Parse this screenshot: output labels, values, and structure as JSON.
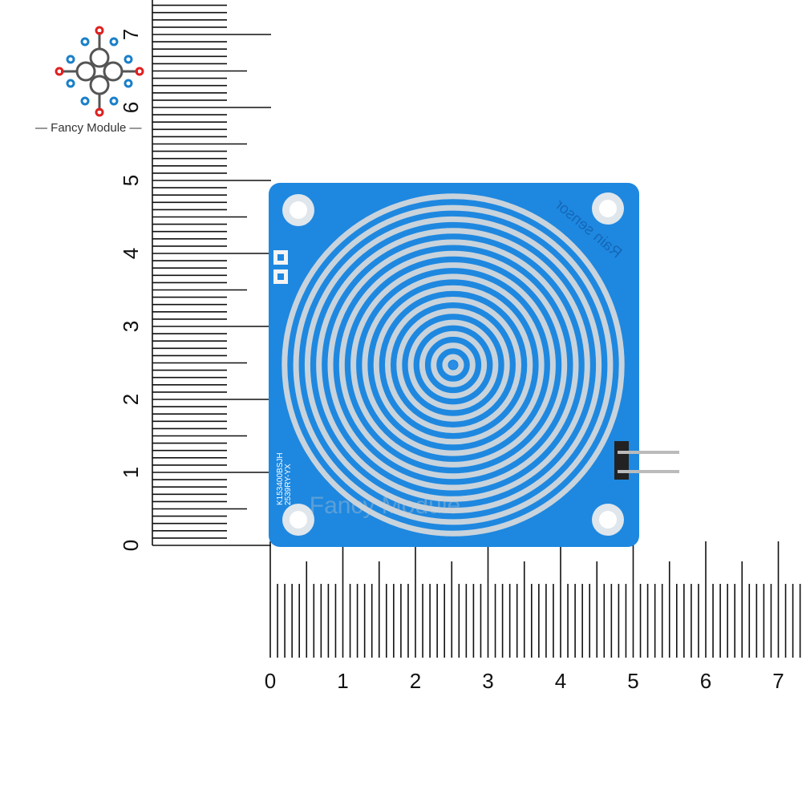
{
  "brand": {
    "name": "Fancy Module",
    "watermark": "Fancy Module"
  },
  "board": {
    "silkscreen_title": "Rain sensor",
    "silkscreen_code_1": "K153400BSJH",
    "silkscreen_code_2": "2539RY-YX",
    "color": "#1e88e0",
    "trace_color": "#c9d3dc"
  },
  "ruler_vertical": {
    "labels": [
      "0",
      "1",
      "2",
      "3",
      "4",
      "5",
      "6",
      "7"
    ]
  },
  "ruler_horizontal": {
    "labels": [
      "0",
      "1",
      "2",
      "3",
      "4",
      "5",
      "6",
      "7"
    ]
  },
  "logo_colors": {
    "red": "#e02020",
    "blue": "#1a7fc8"
  }
}
